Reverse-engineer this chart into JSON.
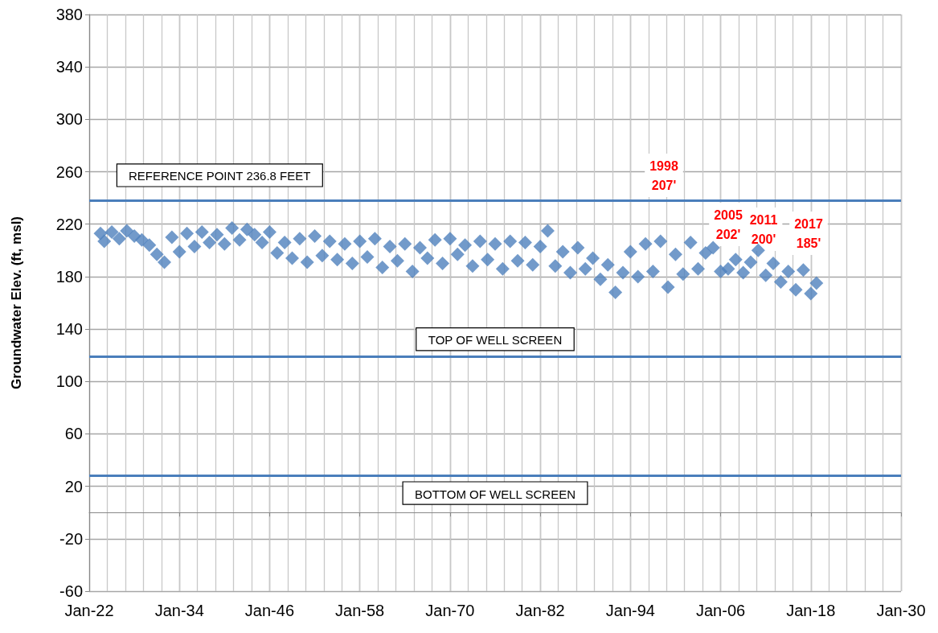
{
  "chart_data": {
    "type": "scatter",
    "ylabel": "Groundwater Elev. (ft, msl)",
    "marker": "diamond",
    "grid": true,
    "x": [
      "1923-07",
      "1924-01",
      "1925-01",
      "1926-01",
      "1927-01",
      "1928-01",
      "1929-01",
      "1930-01",
      "1931-01",
      "1932-01",
      "1933-01",
      "1934-01",
      "1935-01",
      "1936-01",
      "1937-01",
      "1938-01",
      "1939-01",
      "1940-01",
      "1941-01",
      "1942-01",
      "1943-01",
      "1944-01",
      "1945-01",
      "1946-01",
      "1947-01",
      "1948-01",
      "1949-01",
      "1950-01",
      "1951-01",
      "1952-01",
      "1953-01",
      "1954-01",
      "1955-01",
      "1956-01",
      "1957-01",
      "1958-01",
      "1959-01",
      "1960-01",
      "1961-01",
      "1962-01",
      "1963-01",
      "1964-01",
      "1965-01",
      "1966-01",
      "1967-01",
      "1968-01",
      "1969-01",
      "1970-01",
      "1971-01",
      "1972-01",
      "1973-01",
      "1974-01",
      "1975-01",
      "1976-01",
      "1977-01",
      "1978-01",
      "1979-01",
      "1980-01",
      "1981-01",
      "1982-01",
      "1983-01",
      "1984-01",
      "1985-01",
      "1986-01",
      "1987-01",
      "1988-01",
      "1989-01",
      "1990-01",
      "1991-01",
      "1992-01",
      "1993-01",
      "1994-01",
      "1995-01",
      "1996-01",
      "1997-01",
      "1998-01",
      "1999-01",
      "2000-01",
      "2001-01",
      "2002-01",
      "2003-01",
      "2004-01",
      "2005-01",
      "2006-01",
      "2007-01",
      "2008-01",
      "2009-01",
      "2010-01",
      "2011-01",
      "2012-01",
      "2013-01",
      "2014-01",
      "2015-01",
      "2016-01",
      "2017-01",
      "2018-01",
      "2018-10"
    ],
    "series": [
      {
        "color": "#4f81bd",
        "values": [
          213,
          207,
          214,
          209,
          215,
          211,
          208,
          204,
          197,
          191,
          210,
          199,
          213,
          203,
          214,
          206,
          212,
          205,
          217,
          208,
          216,
          212,
          206,
          214,
          198,
          206,
          194,
          209,
          191,
          211,
          196,
          207,
          193,
          205,
          190,
          207,
          195,
          209,
          187,
          203,
          192,
          205,
          184,
          202,
          194,
          208,
          190,
          209,
          197,
          204,
          188,
          207,
          193,
          205,
          186,
          207,
          192,
          206,
          189,
          203,
          215,
          188,
          199,
          183,
          202,
          186,
          194,
          178,
          189,
          168,
          183,
          199,
          180,
          205,
          184,
          207,
          172,
          197,
          182,
          206,
          186,
          198,
          202,
          184,
          186,
          193,
          183,
          191,
          200,
          181,
          190,
          176,
          184,
          170,
          185,
          167,
          175
        ]
      }
    ],
    "xlim": [
      "1922-01",
      "2030-01"
    ],
    "xticks": [
      {
        "value": "1922-01",
        "label": "Jan-22"
      },
      {
        "value": "1934-01",
        "label": "Jan-34"
      },
      {
        "value": "1946-01",
        "label": "Jan-46"
      },
      {
        "value": "1958-01",
        "label": "Jan-58"
      },
      {
        "value": "1970-01",
        "label": "Jan-70"
      },
      {
        "value": "1982-01",
        "label": "Jan-82"
      },
      {
        "value": "1994-01",
        "label": "Jan-94"
      },
      {
        "value": "2006-01",
        "label": "Jan-06"
      },
      {
        "value": "2018-01",
        "label": "Jan-18"
      },
      {
        "value": "2030-01",
        "label": "Jan-30"
      }
    ],
    "ylim": [
      -60,
      380
    ],
    "yticks": [
      -60,
      -20,
      20,
      60,
      100,
      140,
      180,
      220,
      260,
      300,
      340,
      380
    ],
    "ref_lines": [
      {
        "axis": "y",
        "value": 238,
        "label": "REFERENCE POINT 236.8 FEET",
        "color": "#4a7ebb"
      },
      {
        "axis": "y",
        "value": 119,
        "label": "TOP OF WELL SCREEN",
        "color": "#4a7ebb"
      },
      {
        "axis": "y",
        "value": 28,
        "label": "BOTTOM OF WELL SCREEN",
        "color": "#4a7ebb"
      }
    ],
    "annotations": [
      "1998\n207'",
      "2005\n202'",
      "2011\n200'",
      "2017\n185'"
    ]
  }
}
